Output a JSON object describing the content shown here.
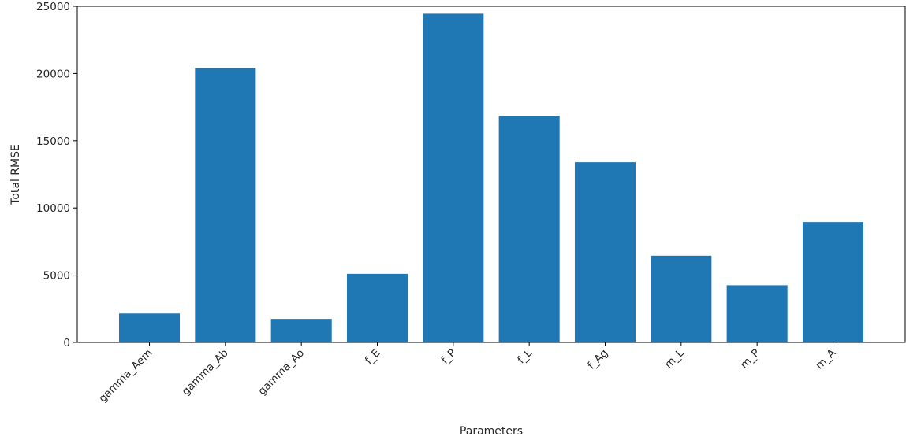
{
  "chart_data": {
    "type": "bar",
    "categories": [
      "gamma_Aem",
      "gamma_Ab",
      "gamma_Ao",
      "f_E",
      "f_P",
      "f_L",
      "f_Ag",
      "m_L",
      "m_P",
      "m_A"
    ],
    "values": [
      2150,
      20400,
      1750,
      5100,
      24450,
      16850,
      13400,
      6450,
      4250,
      8950
    ],
    "xlabel": "Parameters",
    "ylabel": "Total RMSE",
    "ylim": [
      0,
      25000
    ],
    "yticks": [
      0,
      5000,
      10000,
      15000,
      20000,
      25000
    ],
    "grid": false,
    "bar_color": "#1f77b4"
  }
}
